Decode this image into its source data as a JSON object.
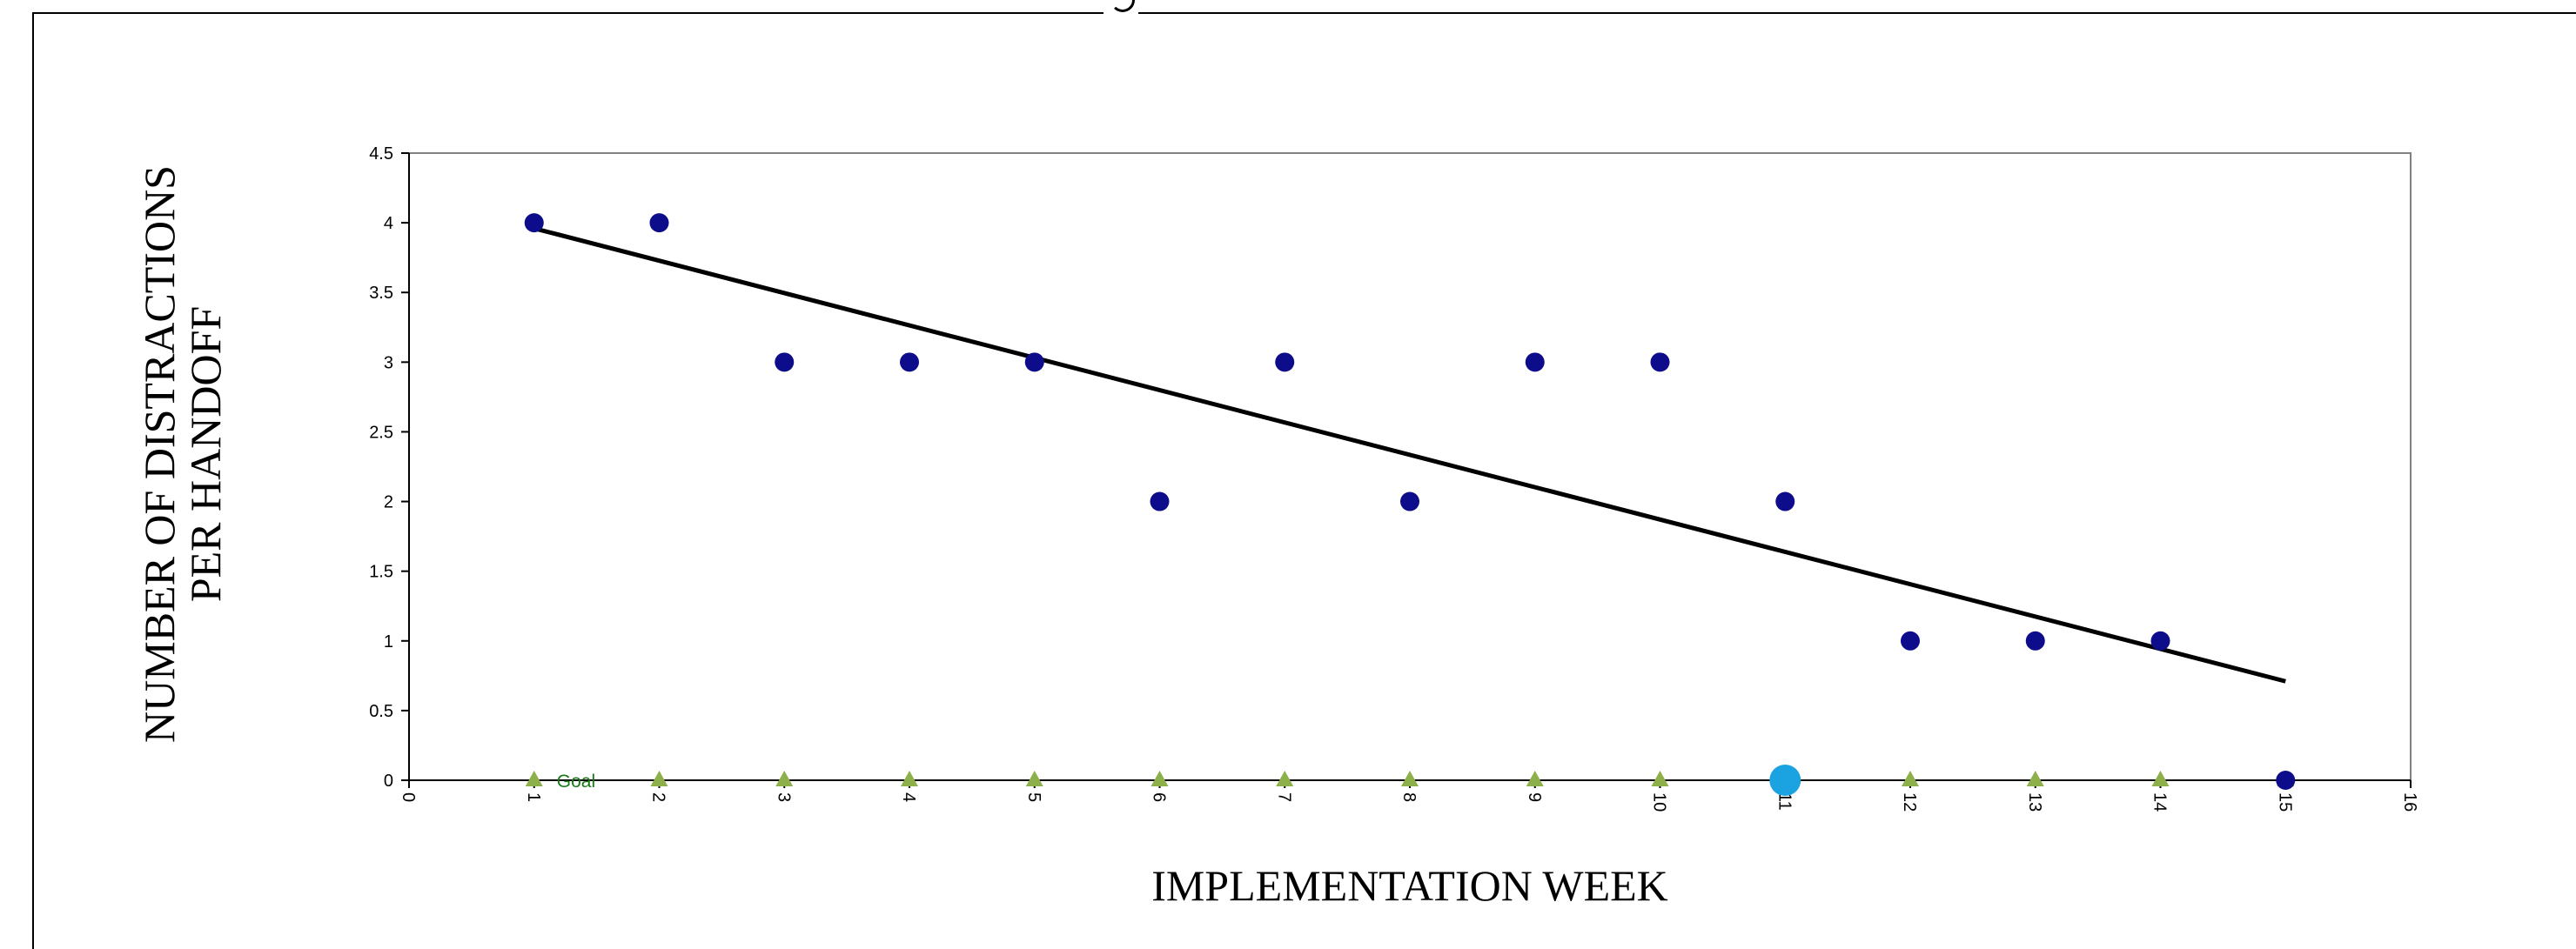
{
  "chart_data": {
    "type": "scatter",
    "title": "",
    "xlabel": "IMPLEMENTATION WEEK",
    "ylabel_lines": [
      "NUMBER OF DISTRACTIONS",
      "PER HANDOFF"
    ],
    "xlim": [
      0,
      16
    ],
    "ylim": [
      0,
      4.5
    ],
    "x_ticks": [
      0,
      1,
      2,
      3,
      4,
      5,
      6,
      7,
      8,
      9,
      10,
      11,
      12,
      13,
      14,
      15,
      16
    ],
    "y_ticks": [
      0,
      0.5,
      1,
      1.5,
      2,
      2.5,
      3,
      3.5,
      4,
      4.5
    ],
    "grid": false,
    "series": [
      {
        "marker": "circle",
        "color": "#0d0d8c",
        "points": [
          [
            1,
            4
          ],
          [
            2,
            4
          ],
          [
            3,
            3
          ],
          [
            4,
            3
          ],
          [
            5,
            3
          ],
          [
            6,
            2
          ],
          [
            7,
            3
          ],
          [
            8,
            2
          ],
          [
            9,
            3
          ],
          [
            10,
            3
          ],
          [
            11,
            2
          ],
          [
            12,
            1
          ],
          [
            13,
            1
          ],
          [
            14,
            1
          ],
          [
            15,
            0
          ]
        ]
      },
      {
        "name": "Goal",
        "marker": "triangle",
        "color": "#8db04a",
        "points": [
          [
            1,
            0
          ],
          [
            2,
            0
          ],
          [
            3,
            0
          ],
          [
            4,
            0
          ],
          [
            5,
            0
          ],
          [
            6,
            0
          ],
          [
            7,
            0
          ],
          [
            8,
            0
          ],
          [
            9,
            0
          ],
          [
            10,
            0
          ],
          [
            11,
            0
          ],
          [
            12,
            0
          ],
          [
            13,
            0
          ],
          [
            14,
            0
          ],
          [
            15,
            0
          ]
        ]
      }
    ],
    "highlight_point": {
      "x": 11,
      "y": 0,
      "color": "#1aa3e0"
    },
    "trendline": {
      "x": [
        1,
        15
      ],
      "y": [
        3.96,
        0.71
      ],
      "color": "#000000"
    },
    "annotations": [
      {
        "text": "Goal",
        "x": 1,
        "y": 0,
        "color": "#1a7a1a"
      }
    ]
  }
}
